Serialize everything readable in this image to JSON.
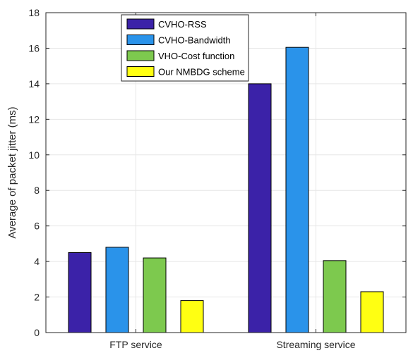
{
  "chart_data": {
    "type": "bar",
    "categories": [
      "FTP service",
      "Streaming service"
    ],
    "series": [
      {
        "name": "CVHO-RSS",
        "values": [
          4.5,
          14.0
        ],
        "color": "#3b22a8"
      },
      {
        "name": "CVHO-Bandwidth",
        "values": [
          4.8,
          16.05
        ],
        "color": "#2a93ea"
      },
      {
        "name": "VHO-Cost function",
        "values": [
          4.2,
          4.05
        ],
        "color": "#7dc94e"
      },
      {
        "name": "Our NMBDG scheme",
        "values": [
          1.8,
          2.3
        ],
        "color": "#ffff12"
      }
    ],
    "ylabel": "Average of packet jitter (ms)",
    "ylim": [
      0,
      18
    ],
    "yticks": [
      0,
      2,
      4,
      6,
      8,
      10,
      12,
      14,
      16,
      18
    ],
    "grid": true,
    "legend_position": "top-left"
  }
}
